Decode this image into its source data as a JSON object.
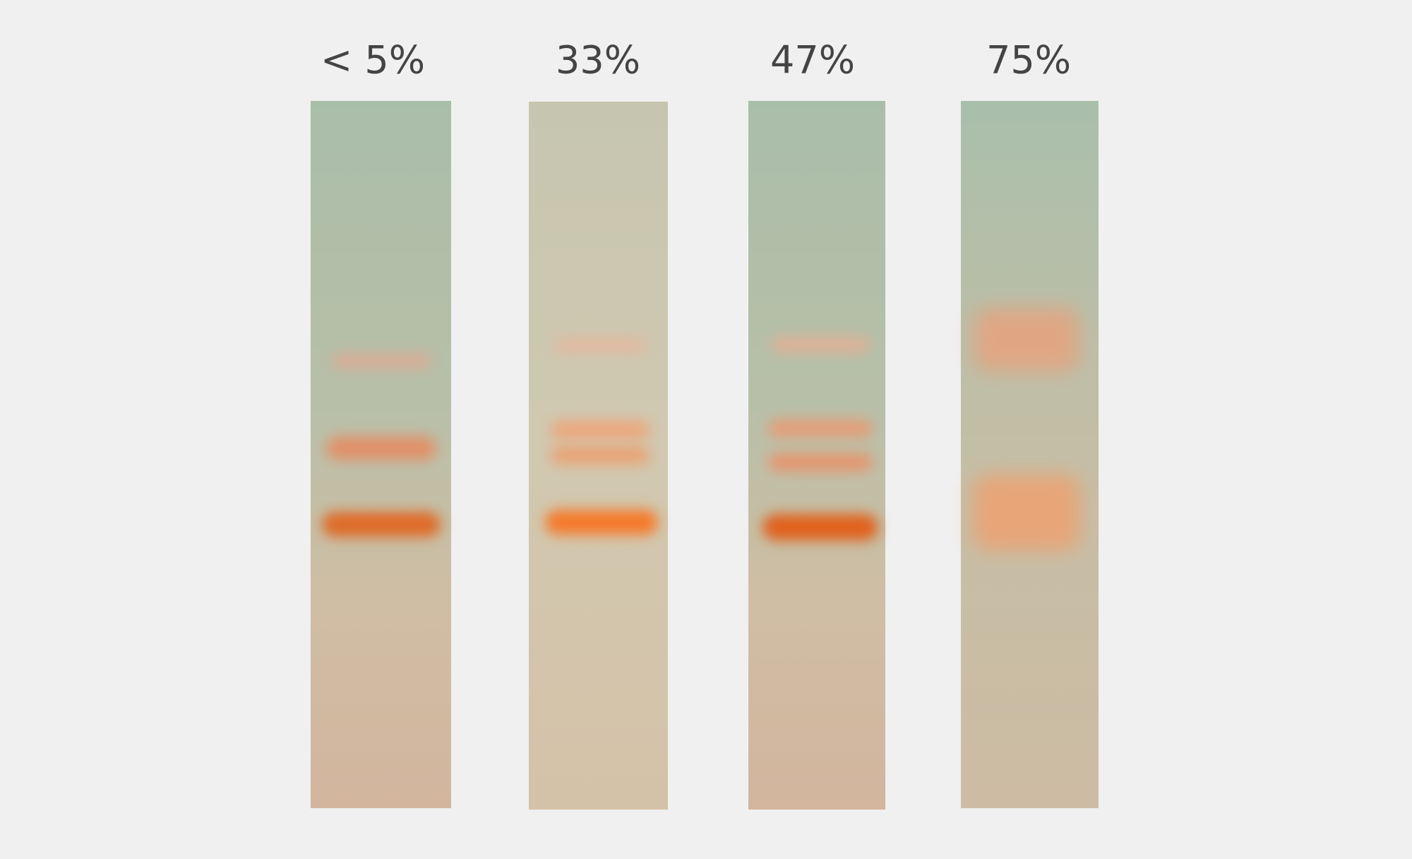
{
  "labels": [
    "< 5%",
    "33%",
    "47%",
    "75%"
  ]
}
